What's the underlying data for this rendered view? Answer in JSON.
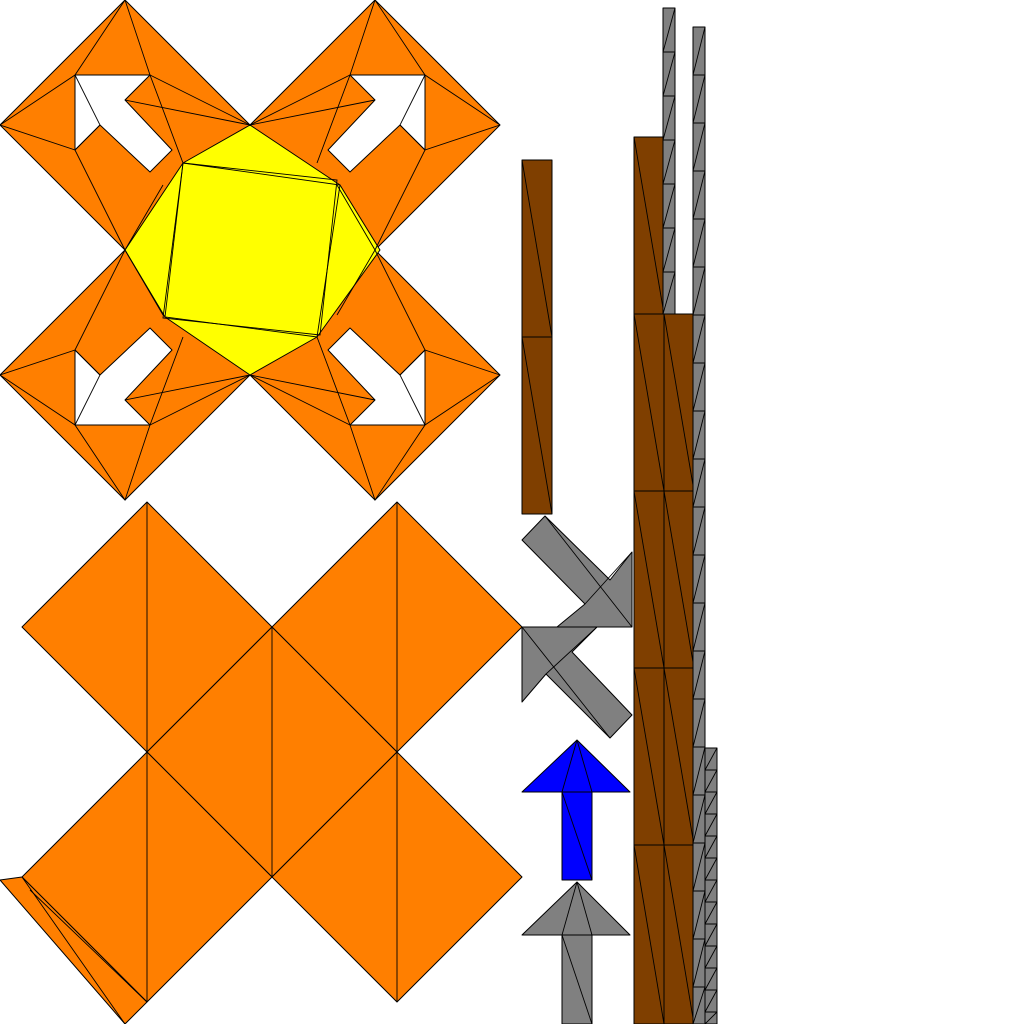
{
  "image_kind": "texture-atlas",
  "colors": {
    "background": "#ffffff",
    "orange": "#ff7f00",
    "yellow": "#ffff00",
    "white_arrow": "#ffffff",
    "brown": "#7f3f00",
    "gray": "#808080",
    "blue": "#0000ff",
    "outline": "#000000"
  },
  "icons": {
    "compass_x_panel": "four-diamond-x-with-corner-arrows",
    "center_badge": "yellow-octagon",
    "diagonal_arrows": [
      "arrow-up-left-icon",
      "arrow-up-right-icon",
      "arrow-down-left-icon",
      "arrow-down-right-icon"
    ],
    "blank_x_panel": "orange-diamond-x",
    "blue_arrow": "arrow-up-icon",
    "gray_arrow": "arrow-up-icon",
    "gray_chevrons": "double-chevron-icon"
  }
}
